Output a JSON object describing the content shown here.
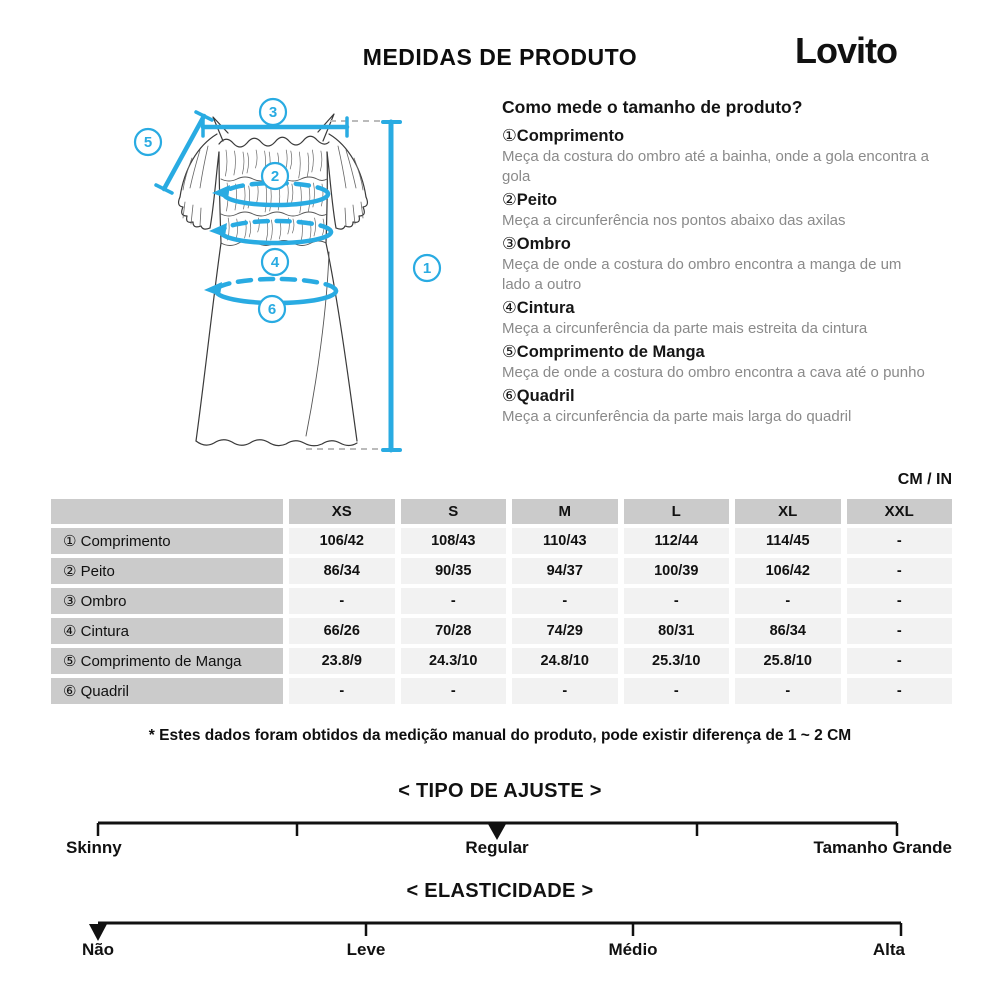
{
  "header": {
    "title": "MEDIDAS DE PRODUTO",
    "brand": "Lovito"
  },
  "instructions": {
    "heading": "Como mede o tamanho de produto?",
    "items": [
      {
        "num": "①",
        "name": "Comprimento",
        "desc": "Meça da costura do ombro até a bainha, onde a gola encontra a gola"
      },
      {
        "num": "②",
        "name": "Peito",
        "desc": "Meça a circunferência nos pontos abaixo das axilas"
      },
      {
        "num": "③",
        "name": "Ombro",
        "desc": "Meça de onde a costura do ombro encontra a manga de um lado a outro"
      },
      {
        "num": "④",
        "name": "Cintura",
        "desc": "Meça a circunferência da parte mais estreita da cintura"
      },
      {
        "num": "⑤",
        "name": "Comprimento de Manga",
        "desc": "Meça de onde a costura do ombro encontra a cava até o punho"
      },
      {
        "num": "⑥",
        "name": "Quadril",
        "desc": "Meça a circunferência da parte mais larga do quadril"
      }
    ]
  },
  "units_label": "CM / IN",
  "table": {
    "columns": [
      "XS",
      "S",
      "M",
      "L",
      "XL",
      "XXL"
    ],
    "rows": [
      {
        "num": "①",
        "label": "Comprimento",
        "values": [
          "106/42",
          "108/43",
          "110/43",
          "112/44",
          "114/45",
          "-"
        ]
      },
      {
        "num": "②",
        "label": "Peito",
        "values": [
          "86/34",
          "90/35",
          "94/37",
          "100/39",
          "106/42",
          "-"
        ]
      },
      {
        "num": "③",
        "label": "Ombro",
        "values": [
          "-",
          "-",
          "-",
          "-",
          "-",
          "-"
        ]
      },
      {
        "num": "④",
        "label": "Cintura",
        "values": [
          "66/26",
          "70/28",
          "74/29",
          "80/31",
          "86/34",
          "-"
        ]
      },
      {
        "num": "⑤",
        "label": "Comprimento de Manga",
        "values": [
          "23.8/9",
          "24.3/10",
          "24.8/10",
          "25.3/10",
          "25.8/10",
          "-"
        ]
      },
      {
        "num": "⑥",
        "label": "Quadril",
        "values": [
          "-",
          "-",
          "-",
          "-",
          "-",
          "-"
        ]
      }
    ]
  },
  "footnote": "* Estes dados foram obtidos da medição manual do produto, pode existir diferença de 1 ~ 2 CM",
  "scales": {
    "ajuste": {
      "title": "< TIPO DE AJUSTE >",
      "labels": [
        "Skinny",
        "Regular",
        "Tamanho Grande"
      ],
      "selected": "Regular"
    },
    "elasticidade": {
      "title": "< ELASTICIDADE >",
      "labels": [
        "Não",
        "Leve",
        "Médio",
        "Alta"
      ],
      "selected": "Não"
    }
  },
  "diagram": {
    "markers": {
      "m1": "1",
      "m2": "2",
      "m3": "3",
      "m4": "4",
      "m5": "5",
      "m6": "6"
    }
  },
  "colors": {
    "accent": "#29abe2",
    "table_header_bg": "#cbcbcb",
    "table_cell_bg": "#f2f2f2",
    "muted_text": "#8a8a8a",
    "dash_gray": "#bbbbbb",
    "sketch": "#3a3a3a"
  }
}
